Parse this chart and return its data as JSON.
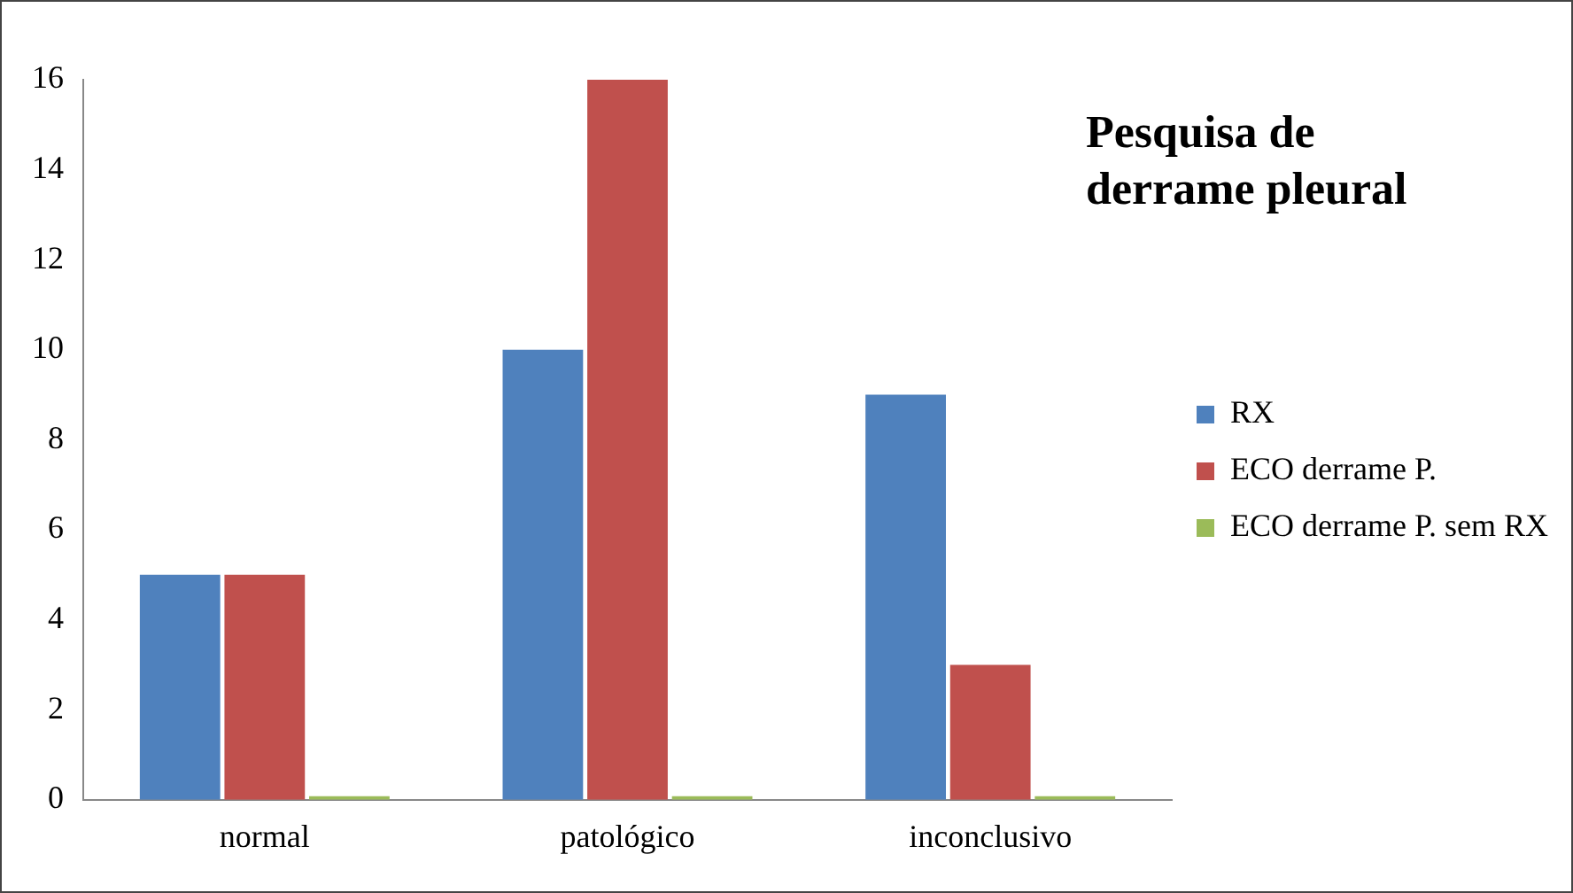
{
  "chart_data": {
    "type": "bar",
    "title": "Pesquisa de derrame pleural",
    "categories": [
      "normal",
      "patológico",
      "inconclusivo"
    ],
    "series": [
      {
        "name": "RX",
        "color": "#4f81bd",
        "values": [
          5,
          10,
          9
        ]
      },
      {
        "name": "ECO derrame P.",
        "color": "#c0504d",
        "values": [
          5,
          16,
          3
        ]
      },
      {
        "name": "ECO derrame P. sem RX",
        "color": "#9bbb59",
        "values": [
          0,
          0,
          0
        ]
      }
    ],
    "ylim": [
      0,
      16
    ],
    "yticks": [
      0,
      2,
      4,
      6,
      8,
      10,
      12,
      14,
      16
    ],
    "grid": false,
    "legend": "right"
  }
}
